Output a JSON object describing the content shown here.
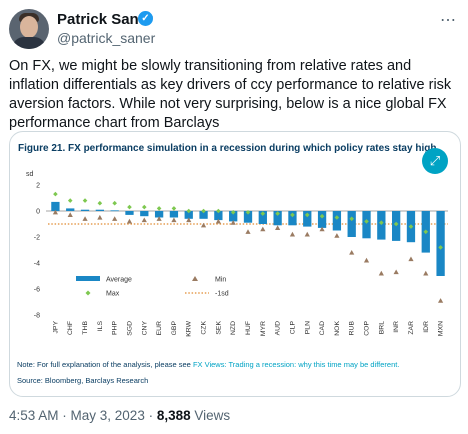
{
  "tweet": {
    "author_name": "Patrick Saner",
    "handle": "@patrick_saner",
    "text": "On FX, we might be slowly transitioning from relative rates and inflation differentials as key drivers of ccy performance to relative risk aversion factors. While not very surprising, below is a nice global FX performance chart from Barclays",
    "time": "4:53 AM · May 3, 2023 · ",
    "views_count": "8,388",
    "views_label": " Views"
  },
  "icons": {
    "verified": "verified-badge-icon",
    "more": "more-options-icon",
    "expand": "expand-icon"
  },
  "colors": {
    "bar": "#1a87c5",
    "max": "#7ec850",
    "min": "#9a7b62",
    "minus1sd": "#e08a30",
    "title": "#0a3d62"
  },
  "card": {
    "figure_title": "Figure 21. FX performance simulation in a recession during which policy rates stay high",
    "note_prefix": "Note: For full explanation of the analysis, please see ",
    "note_link": "FX Views: Trading a recession: why this time may be different.",
    "source": "Source: Bloomberg, Barclays Research"
  },
  "chart_data": {
    "type": "bar",
    "ylabel": "sd",
    "ylim": [
      -8,
      2
    ],
    "yticks": [
      2,
      0,
      -2,
      -4,
      -6,
      -8
    ],
    "categories": [
      "JPY",
      "CHF",
      "THB",
      "ILS",
      "PHP",
      "SGD",
      "CNY",
      "EUR",
      "GBP",
      "KRW",
      "CZK",
      "SEK",
      "NZD",
      "HUF",
      "MYR",
      "AUD",
      "CLP",
      "PLN",
      "CAD",
      "NOK",
      "RUB",
      "COP",
      "BRL",
      "INR",
      "ZAR",
      "IDR",
      "MXN"
    ],
    "series": [
      {
        "name": "Average",
        "values": [
          0.7,
          0.2,
          0.1,
          0.1,
          0.05,
          -0.3,
          -0.4,
          -0.5,
          -0.5,
          -0.6,
          -0.6,
          -0.7,
          -0.8,
          -0.9,
          -1.0,
          -1.1,
          -1.1,
          -1.2,
          -1.3,
          -1.5,
          -2.0,
          -2.1,
          -2.2,
          -2.3,
          -2.4,
          -3.2,
          -5.0
        ]
      },
      {
        "name": "Max",
        "values": [
          1.3,
          0.8,
          0.8,
          0.6,
          0.6,
          0.3,
          0.3,
          0.2,
          0.2,
          0.0,
          0.0,
          0.0,
          -0.1,
          -0.1,
          -0.2,
          -0.2,
          -0.3,
          -0.3,
          -0.4,
          -0.5,
          -0.6,
          -0.8,
          -0.9,
          -1.0,
          -1.2,
          -1.6,
          -2.8
        ]
      },
      {
        "name": "Min",
        "values": [
          -0.1,
          -0.3,
          -0.6,
          -0.5,
          -0.6,
          -0.8,
          -0.7,
          -0.6,
          -0.7,
          -0.7,
          -1.1,
          -0.8,
          -0.9,
          -1.6,
          -1.4,
          -1.3,
          -1.8,
          -1.8,
          -1.4,
          -1.9,
          -3.2,
          -3.8,
          -4.8,
          -4.7,
          -3.7,
          -4.8,
          -6.9
        ]
      },
      {
        "name": "-1sd",
        "values": [
          -1,
          -1,
          -1,
          -1,
          -1,
          -1,
          -1,
          -1,
          -1,
          -1,
          -1,
          -1,
          -1,
          -1,
          -1,
          -1,
          -1,
          -1,
          -1,
          -1,
          -1,
          -1,
          -1,
          -1,
          -1,
          -1,
          -1
        ]
      }
    ],
    "legend": [
      "Average",
      "Min",
      "Max",
      "-1sd"
    ],
    "legend_placement": "bottom-left",
    "grid": false
  }
}
